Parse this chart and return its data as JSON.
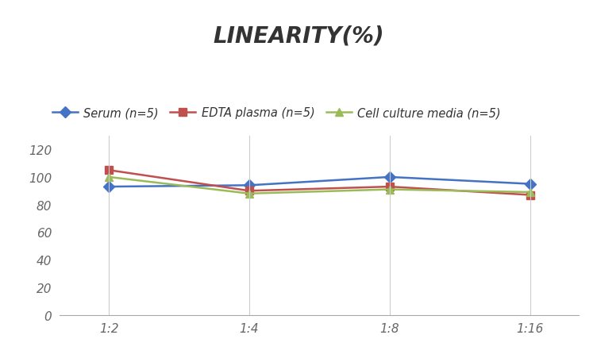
{
  "title": "LINEARITY(%)",
  "x_labels": [
    "1:2",
    "1:4",
    "1:8",
    "1:16"
  ],
  "x_positions": [
    0,
    1,
    2,
    3
  ],
  "series": [
    {
      "label": "Serum (n=5)",
      "color": "#4472C4",
      "marker": "D",
      "values": [
        93,
        94,
        100,
        95
      ]
    },
    {
      "label": "EDTA plasma (n=5)",
      "color": "#C0504D",
      "marker": "s",
      "values": [
        105,
        90,
        93,
        87
      ]
    },
    {
      "label": "Cell culture media (n=5)",
      "color": "#9BBB59",
      "marker": "^",
      "values": [
        100,
        88,
        91,
        89
      ]
    }
  ],
  "ylim": [
    0,
    130
  ],
  "yticks": [
    0,
    20,
    40,
    60,
    80,
    100,
    120
  ],
  "background_color": "#FFFFFF",
  "grid_color": "#CCCCCC",
  "title_fontsize": 20,
  "legend_fontsize": 10.5,
  "tick_fontsize": 11
}
